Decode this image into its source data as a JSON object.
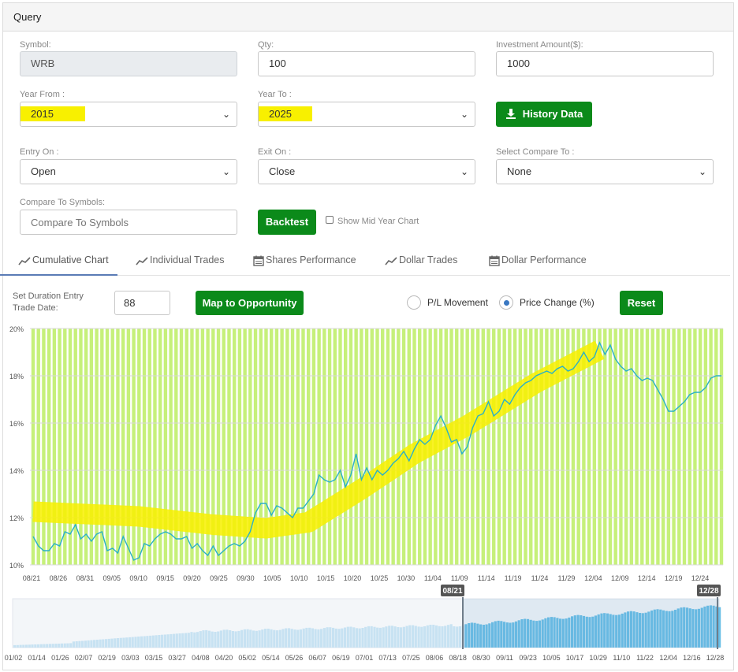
{
  "panel": {
    "title": "Query"
  },
  "form": {
    "symbol": {
      "label": "Symbol:",
      "value": "WRB"
    },
    "qty": {
      "label": "Qty:",
      "value": "100"
    },
    "investment": {
      "label": "Investment Amount($):",
      "value": "1000"
    },
    "year_from": {
      "label": "Year From :",
      "value": "2015"
    },
    "year_to": {
      "label": "Year To :",
      "value": "2025"
    },
    "history_button": "History Data",
    "entry_on": {
      "label": "Entry On :",
      "value": "Open"
    },
    "exit_on": {
      "label": "Exit On :",
      "value": "Close"
    },
    "compare_to": {
      "label": "Select Compare To :",
      "value": "None"
    },
    "compare_symbols": {
      "label": "Compare To Symbols:",
      "placeholder": "Compare To Symbols"
    },
    "backtest_button": "Backtest",
    "show_mid_year": "Show Mid Year Chart"
  },
  "tabs": [
    {
      "label": "Cumulative Chart",
      "icon": "line-chart-icon",
      "active": true
    },
    {
      "label": "Individual Trades",
      "icon": "line-chart-icon"
    },
    {
      "label": "Shares Performance",
      "icon": "calendar-icon"
    },
    {
      "label": "Dollar Trades",
      "icon": "line-chart-icon"
    },
    {
      "label": "Dollar Performance",
      "icon": "calendar-icon"
    }
  ],
  "controls": {
    "duration_label_1": "Set Duration Entry",
    "duration_label_2": "Trade Date:",
    "duration_value": "88",
    "map_button": "Map to Opportunity",
    "pl_movement": "P/L Movement",
    "price_change": "Price Change (%)",
    "selected_mode": "Price Change (%)",
    "reset_button": "Reset"
  },
  "colors": {
    "accent_green": "#0b8a1a",
    "highlight_yellow": "#f8f000",
    "chart_line": "#2ab0c8",
    "chart_band": "#c6f07a",
    "navigator_fill": "#6cc0e6"
  },
  "chart_data": {
    "type": "line",
    "yticks": [
      "20%",
      "18%",
      "16%",
      "14%",
      "12%",
      "10%"
    ],
    "ylim": [
      10,
      20
    ],
    "xticks": [
      "08/21",
      "08/26",
      "08/31",
      "09/05",
      "09/10",
      "09/15",
      "09/20",
      "09/25",
      "09/30",
      "10/05",
      "10/10",
      "10/15",
      "10/20",
      "10/25",
      "10/30",
      "11/04",
      "11/09",
      "11/14",
      "11/19",
      "11/24",
      "11/29",
      "12/04",
      "12/09",
      "12/14",
      "12/19",
      "12/24"
    ],
    "values": [
      11.2,
      10.8,
      10.6,
      10.6,
      10.9,
      10.8,
      11.4,
      11.3,
      11.7,
      11.1,
      11.3,
      11.0,
      11.3,
      11.4,
      10.6,
      10.7,
      10.5,
      11.2,
      10.7,
      10.2,
      10.3,
      10.9,
      10.8,
      11.1,
      11.3,
      11.4,
      11.3,
      11.1,
      11.1,
      11.2,
      10.7,
      10.9,
      10.6,
      10.4,
      10.8,
      10.4,
      10.6,
      10.8,
      10.9,
      10.8,
      11.0,
      11.4,
      12.2,
      12.6,
      12.6,
      12.1,
      12.5,
      12.4,
      12.2,
      12.0,
      12.4,
      12.4,
      12.7,
      13.0,
      13.8,
      13.6,
      13.5,
      13.6,
      14.0,
      13.3,
      13.8,
      14.7,
      13.6,
      14.1,
      13.6,
      14.0,
      13.8,
      14.0,
      14.3,
      14.5,
      14.8,
      14.4,
      14.9,
      15.3,
      15.1,
      15.3,
      15.9,
      16.3,
      15.8,
      15.2,
      15.3,
      14.7,
      15.0,
      15.8,
      16.3,
      16.4,
      16.9,
      16.3,
      16.5,
      17.0,
      16.8,
      17.2,
      17.5,
      17.7,
      17.8,
      18.0,
      18.1,
      18.2,
      18.1,
      18.3,
      18.4,
      18.2,
      18.3,
      18.6,
      19.0,
      18.6,
      18.8,
      19.4,
      18.9,
      19.3,
      18.7,
      18.4,
      18.2,
      18.3,
      18.0,
      17.8,
      17.9,
      17.8,
      17.4,
      17.0,
      16.5,
      16.5,
      16.7,
      16.9,
      17.2,
      17.3,
      17.3,
      17.5,
      17.9,
      18.0,
      18.0
    ],
    "navigator": {
      "xticks": [
        "01/02",
        "01/14",
        "01/26",
        "02/07",
        "02/19",
        "03/03",
        "03/15",
        "03/27",
        "04/08",
        "04/20",
        "05/02",
        "05/14",
        "05/26",
        "06/07",
        "06/19",
        "07/01",
        "07/13",
        "07/25",
        "08/06",
        "08/18",
        "08/30",
        "09/11",
        "09/23",
        "10/05",
        "10/17",
        "10/29",
        "11/10",
        "11/22",
        "12/04",
        "12/16",
        "12/28"
      ],
      "range_start": "08/21",
      "range_end": "12/28"
    }
  }
}
